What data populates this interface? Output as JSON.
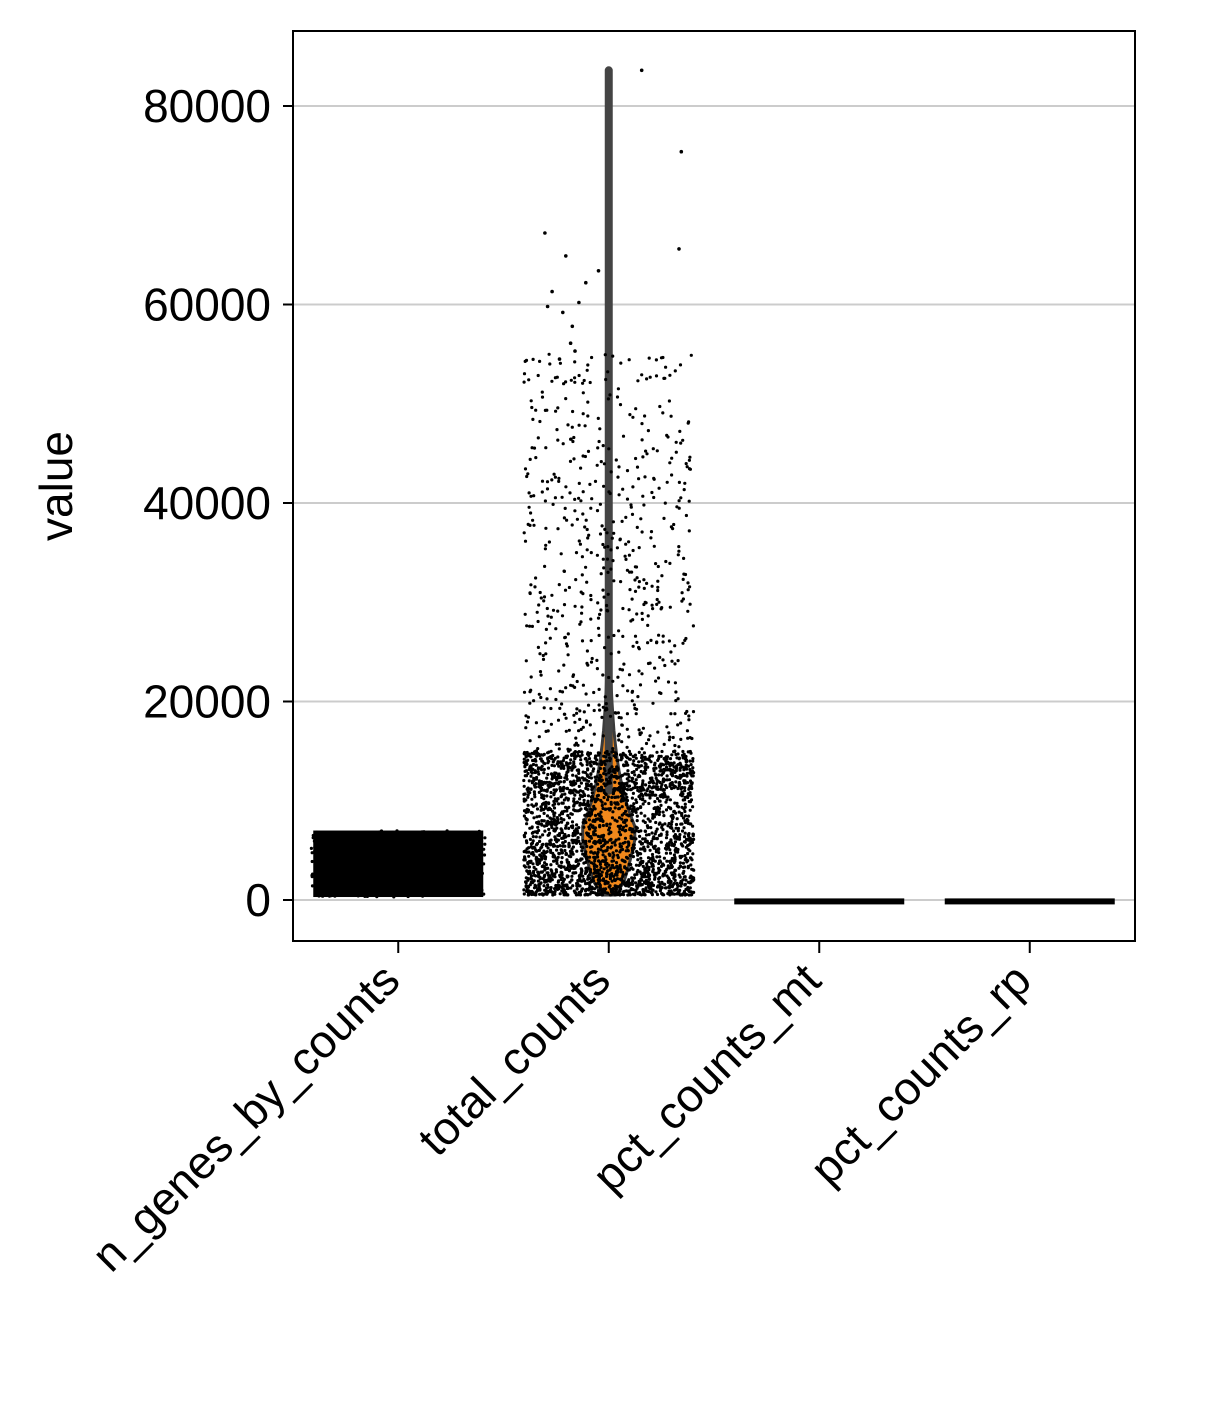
{
  "chart_data": {
    "type": "violin",
    "title": "",
    "xlabel": "",
    "ylabel": "value",
    "ylim": [
      -4000,
      88000
    ],
    "yticks": [
      0,
      20000,
      40000,
      60000,
      80000
    ],
    "ytick_labels": [
      "0",
      "20000",
      "40000",
      "60000",
      "80000"
    ],
    "grid": "horizontal",
    "legend": "none",
    "violin_color": "#f0881c",
    "point_color": "#000000",
    "categories": [
      "n_genes_by_counts",
      "total_counts",
      "pct_counts_mt",
      "pct_counts_rp"
    ],
    "series": [
      {
        "category": "n_genes_by_counts",
        "min": 300,
        "q1": 1800,
        "median": 3000,
        "q3": 4600,
        "max": 7000,
        "spread": "uniform"
      },
      {
        "category": "total_counts",
        "min": 500,
        "q1": 4000,
        "median": 7000,
        "q3": 11000,
        "max": 83600,
        "spread": "right-skewed",
        "outliers": [
          83600,
          75400,
          67200,
          65600,
          64900,
          63400,
          62200,
          61300,
          60200,
          59800,
          59200,
          57800,
          56100,
          55300,
          54500
        ]
      },
      {
        "category": "pct_counts_mt",
        "min": 0,
        "q1": 0,
        "median": 0,
        "q3": 10,
        "max": 60,
        "spread": "flat"
      },
      {
        "category": "pct_counts_rp",
        "min": 0,
        "q1": 0,
        "median": 0,
        "q3": 20,
        "max": 60,
        "spread": "flat"
      }
    ]
  }
}
